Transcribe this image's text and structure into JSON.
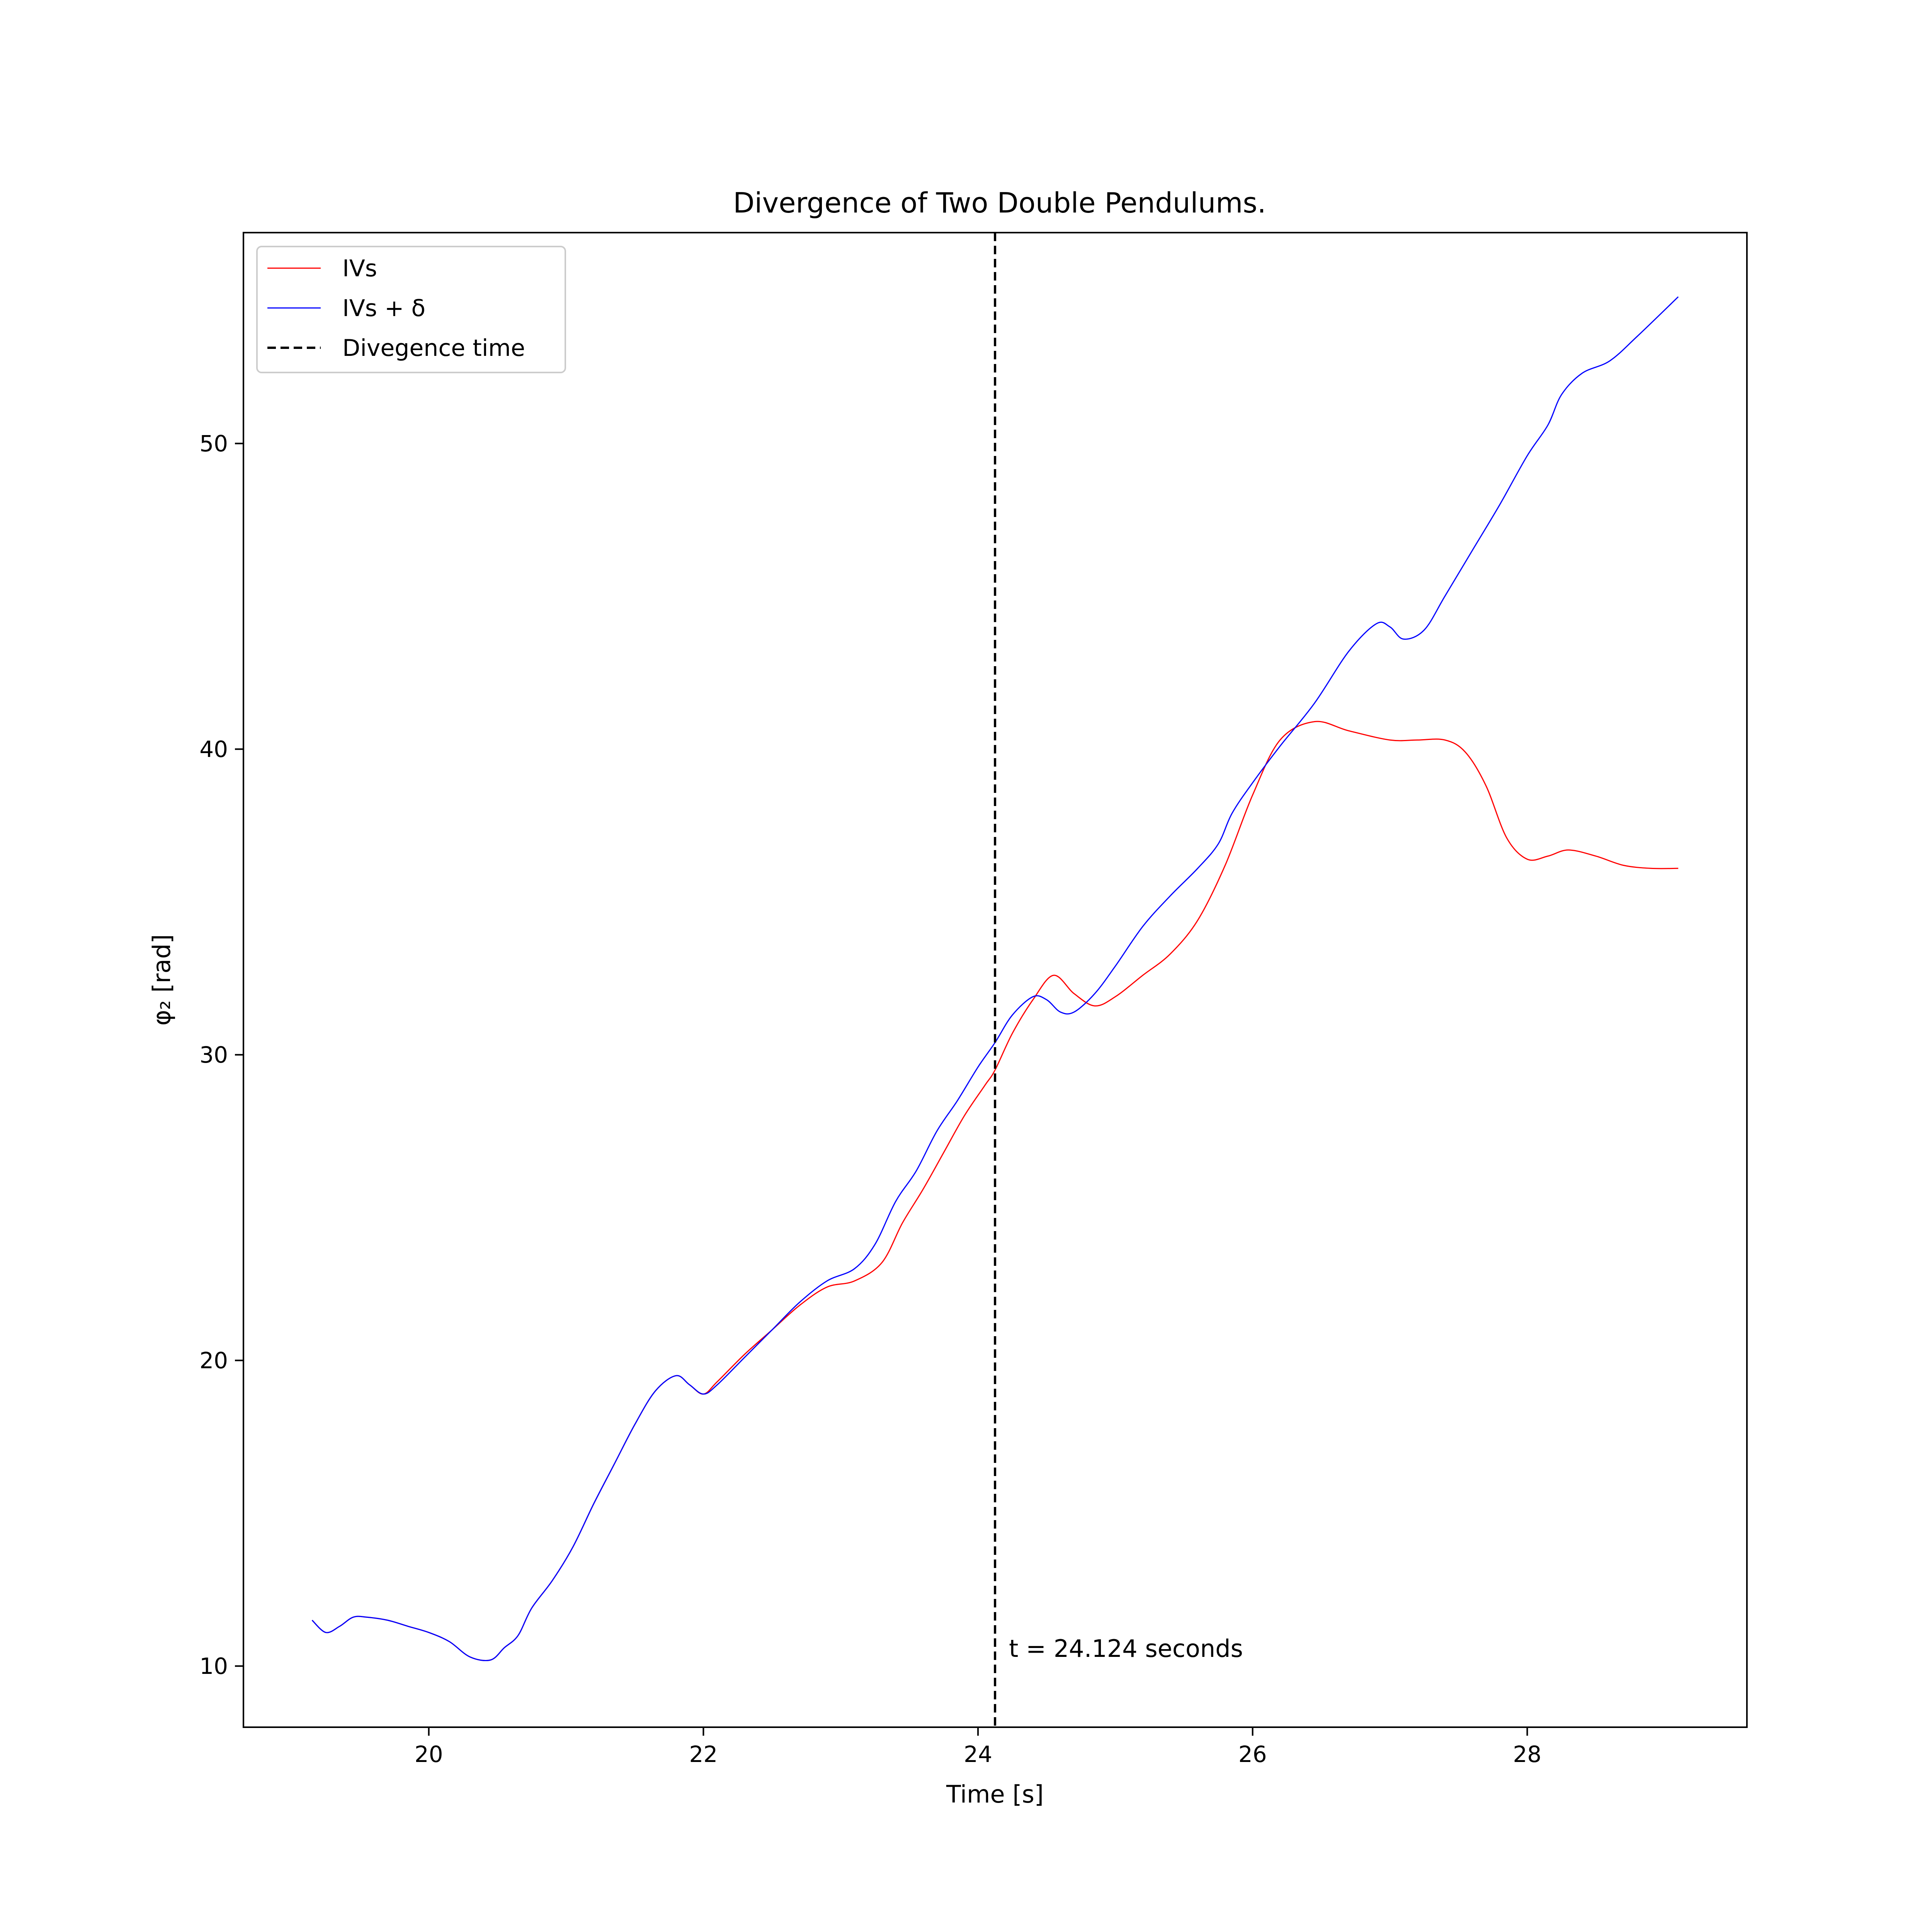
{
  "chart_data": {
    "type": "line",
    "title": "Divergence of Two Double Pendulums.",
    "xlabel": "Time [s]",
    "ylabel": "φ₂ [rad]",
    "xlim": [
      18.65,
      29.6
    ],
    "ylim": [
      8.0,
      56.9
    ],
    "x_ticks": [
      20,
      22,
      24,
      26,
      28
    ],
    "y_ticks": [
      10,
      20,
      30,
      40,
      50
    ],
    "x_tick_labels": [
      "20",
      "22",
      "24",
      "26",
      "28"
    ],
    "y_tick_labels": [
      "10",
      "20",
      "30",
      "40",
      "50"
    ],
    "grid": false,
    "legend": {
      "placement": "top-left",
      "entries": [
        {
          "label": "IVs",
          "color": "#ff0000",
          "style": "solid"
        },
        {
          "label": "IVs + δ",
          "color": "#0000ff",
          "style": "solid"
        },
        {
          "label": "Divegence time",
          "color": "#000000",
          "style": "dashed"
        }
      ]
    },
    "divergence_time": 24.124,
    "annotation": "t = 24.124 seconds",
    "series": [
      {
        "name": "IVs",
        "color": "#ff0000",
        "x": [
          19.15,
          19.25,
          19.35,
          19.45,
          19.55,
          19.7,
          19.85,
          20.0,
          20.15,
          20.3,
          20.45,
          20.55,
          20.65,
          20.75,
          20.9,
          21.05,
          21.2,
          21.35,
          21.5,
          21.65,
          21.8,
          21.9,
          22.0,
          22.1,
          22.3,
          22.5,
          22.7,
          22.9,
          23.1,
          23.3,
          23.45,
          23.6,
          23.75,
          23.9,
          24.05,
          24.124,
          24.25,
          24.4,
          24.55,
          24.7,
          24.85,
          25.0,
          25.2,
          25.4,
          25.6,
          25.8,
          26.0,
          26.2,
          26.45,
          26.7,
          27.0,
          27.2,
          27.4,
          27.55,
          27.7,
          27.85,
          28.0,
          28.15,
          28.3,
          28.5,
          28.7,
          28.9,
          29.1
        ],
        "values": [
          11.5,
          11.1,
          11.3,
          11.6,
          11.6,
          11.5,
          11.3,
          11.1,
          10.8,
          10.3,
          10.2,
          10.6,
          11.0,
          11.9,
          12.8,
          13.9,
          15.3,
          16.6,
          17.9,
          19.0,
          19.5,
          19.2,
          18.9,
          19.3,
          20.2,
          21.0,
          21.8,
          22.4,
          22.6,
          23.2,
          24.5,
          25.6,
          26.8,
          28.0,
          29.0,
          29.5,
          30.7,
          31.8,
          32.6,
          32.0,
          31.6,
          31.9,
          32.6,
          33.3,
          34.4,
          36.2,
          38.5,
          40.3,
          40.9,
          40.6,
          40.3,
          40.3,
          40.3,
          39.9,
          38.8,
          37.1,
          36.4,
          36.5,
          36.7,
          36.5,
          36.2,
          36.1,
          36.1
        ]
      },
      {
        "name": "IVs + δ",
        "color": "#0000ff",
        "x": [
          19.15,
          19.25,
          19.35,
          19.45,
          19.55,
          19.7,
          19.85,
          20.0,
          20.15,
          20.3,
          20.45,
          20.55,
          20.65,
          20.75,
          20.9,
          21.05,
          21.2,
          21.35,
          21.5,
          21.65,
          21.8,
          21.9,
          22.0,
          22.1,
          22.3,
          22.5,
          22.7,
          22.9,
          23.1,
          23.25,
          23.4,
          23.55,
          23.7,
          23.85,
          24.0,
          24.124,
          24.25,
          24.4,
          24.5,
          24.6,
          24.7,
          24.85,
          25.0,
          25.2,
          25.4,
          25.6,
          25.75,
          25.85,
          26.0,
          26.2,
          26.45,
          26.7,
          26.9,
          27.0,
          27.1,
          27.25,
          27.4,
          27.6,
          27.8,
          28.0,
          28.15,
          28.25,
          28.4,
          28.6,
          28.8,
          29.1
        ],
        "values": [
          11.5,
          11.1,
          11.3,
          11.6,
          11.6,
          11.5,
          11.3,
          11.1,
          10.8,
          10.3,
          10.2,
          10.6,
          11.0,
          11.9,
          12.8,
          13.9,
          15.3,
          16.6,
          17.9,
          19.0,
          19.5,
          19.2,
          18.9,
          19.2,
          20.1,
          21.0,
          21.9,
          22.6,
          23.0,
          23.8,
          25.2,
          26.2,
          27.5,
          28.5,
          29.6,
          30.4,
          31.3,
          31.9,
          31.8,
          31.4,
          31.4,
          32.0,
          32.9,
          34.2,
          35.2,
          36.1,
          36.9,
          37.9,
          38.9,
          40.1,
          41.5,
          43.2,
          44.1,
          44.0,
          43.6,
          43.9,
          45.0,
          46.5,
          48.0,
          49.6,
          50.6,
          51.6,
          52.3,
          52.7,
          53.5,
          54.8
        ]
      }
    ]
  }
}
